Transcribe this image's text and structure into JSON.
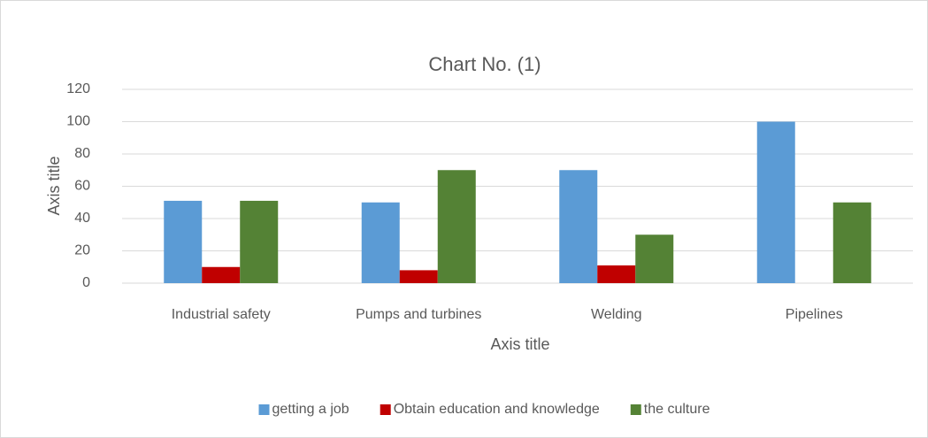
{
  "chart_data": {
    "type": "bar",
    "title": "Chart No. (1)",
    "x_label": "Axis title",
    "y_label": "Axis title",
    "categories": [
      "Industrial safety",
      "Pumps and turbines",
      "Welding",
      "Pipelines"
    ],
    "series": [
      {
        "name": "getting a job",
        "color": "#5b9bd5",
        "values": [
          51,
          50,
          70,
          100
        ]
      },
      {
        "name": "Obtain education and knowledge",
        "color": "#c00000",
        "values": [
          10,
          8,
          11,
          0
        ]
      },
      {
        "name": "the culture",
        "color": "#548235",
        "values": [
          51,
          70,
          30,
          50
        ]
      }
    ],
    "ylim": [
      0,
      120
    ],
    "yticks": [
      0,
      20,
      40,
      60,
      80,
      100,
      120
    ],
    "grid": true,
    "legend": "bottom"
  }
}
